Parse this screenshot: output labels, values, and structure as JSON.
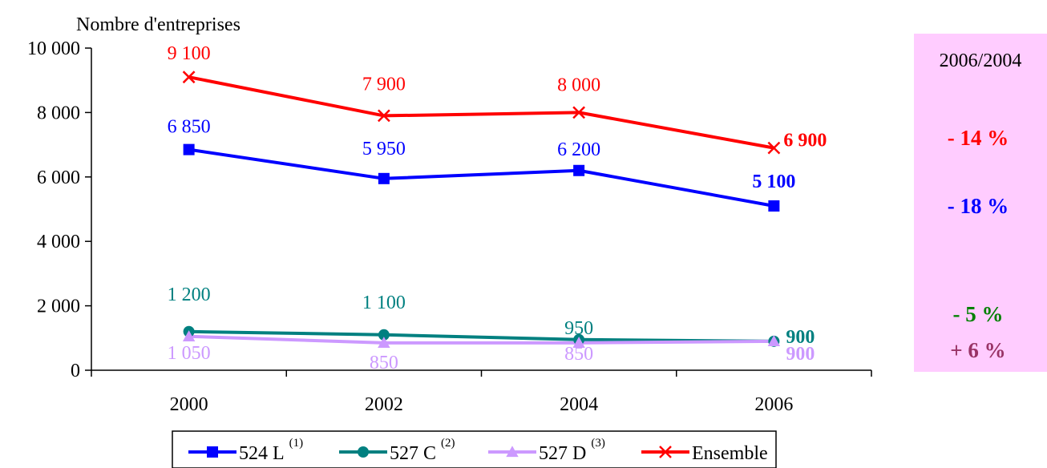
{
  "chart_data": {
    "type": "line",
    "ylabel": "Nombre d'entreprises",
    "x": [
      "2000",
      "2002",
      "2004",
      "2006"
    ],
    "ylim": [
      0,
      10000
    ],
    "yticks": [
      {
        "value": 0,
        "label": "0"
      },
      {
        "value": 2000,
        "label": "2 000"
      },
      {
        "value": 4000,
        "label": "4 000"
      },
      {
        "value": 6000,
        "label": "6 000"
      },
      {
        "value": 8000,
        "label": "8 000"
      },
      {
        "value": 10000,
        "label": "10 000"
      }
    ],
    "grid": false,
    "legend_position": "bottom",
    "series": [
      {
        "key": "524l",
        "name": "524 L",
        "sup": "(1)",
        "color": "#0000ff",
        "marker": "square",
        "values": [
          6850,
          5950,
          6200,
          5100
        ],
        "labels": [
          "6 850",
          "5 950",
          "6 200",
          "5 100"
        ]
      },
      {
        "key": "527c",
        "name": "527 C",
        "sup": "(2)",
        "color": "#008080",
        "marker": "circle",
        "values": [
          1200,
          1100,
          950,
          900
        ],
        "labels": [
          "1 200",
          "1 100",
          "950",
          "900"
        ]
      },
      {
        "key": "527d",
        "name": "527 D",
        "sup": "(3)",
        "color": "#cc99ff",
        "marker": "triangle",
        "values": [
          1050,
          850,
          850,
          900
        ],
        "labels": [
          "1 050",
          "850",
          "850",
          "900"
        ]
      },
      {
        "key": "ens",
        "name": "Ensemble",
        "sup": "",
        "color": "#ff0000",
        "marker": "x",
        "values": [
          9100,
          7900,
          8000,
          6900
        ],
        "labels": [
          "9 100",
          "7 900",
          "8 000",
          "6 900"
        ]
      }
    ]
  },
  "side_panel": {
    "title": "2006/2004",
    "background": "#ffccff",
    "changes": [
      {
        "series": "Ensemble",
        "text": "- 14 %",
        "color": "#ff0000"
      },
      {
        "series": "524 L",
        "text": "- 18 %",
        "color": "#0000ff"
      },
      {
        "series": "527 C",
        "text": "- 5 %",
        "color": "#008000"
      },
      {
        "series": "527 D",
        "text": "+ 6 %",
        "color": "#993366"
      }
    ]
  }
}
